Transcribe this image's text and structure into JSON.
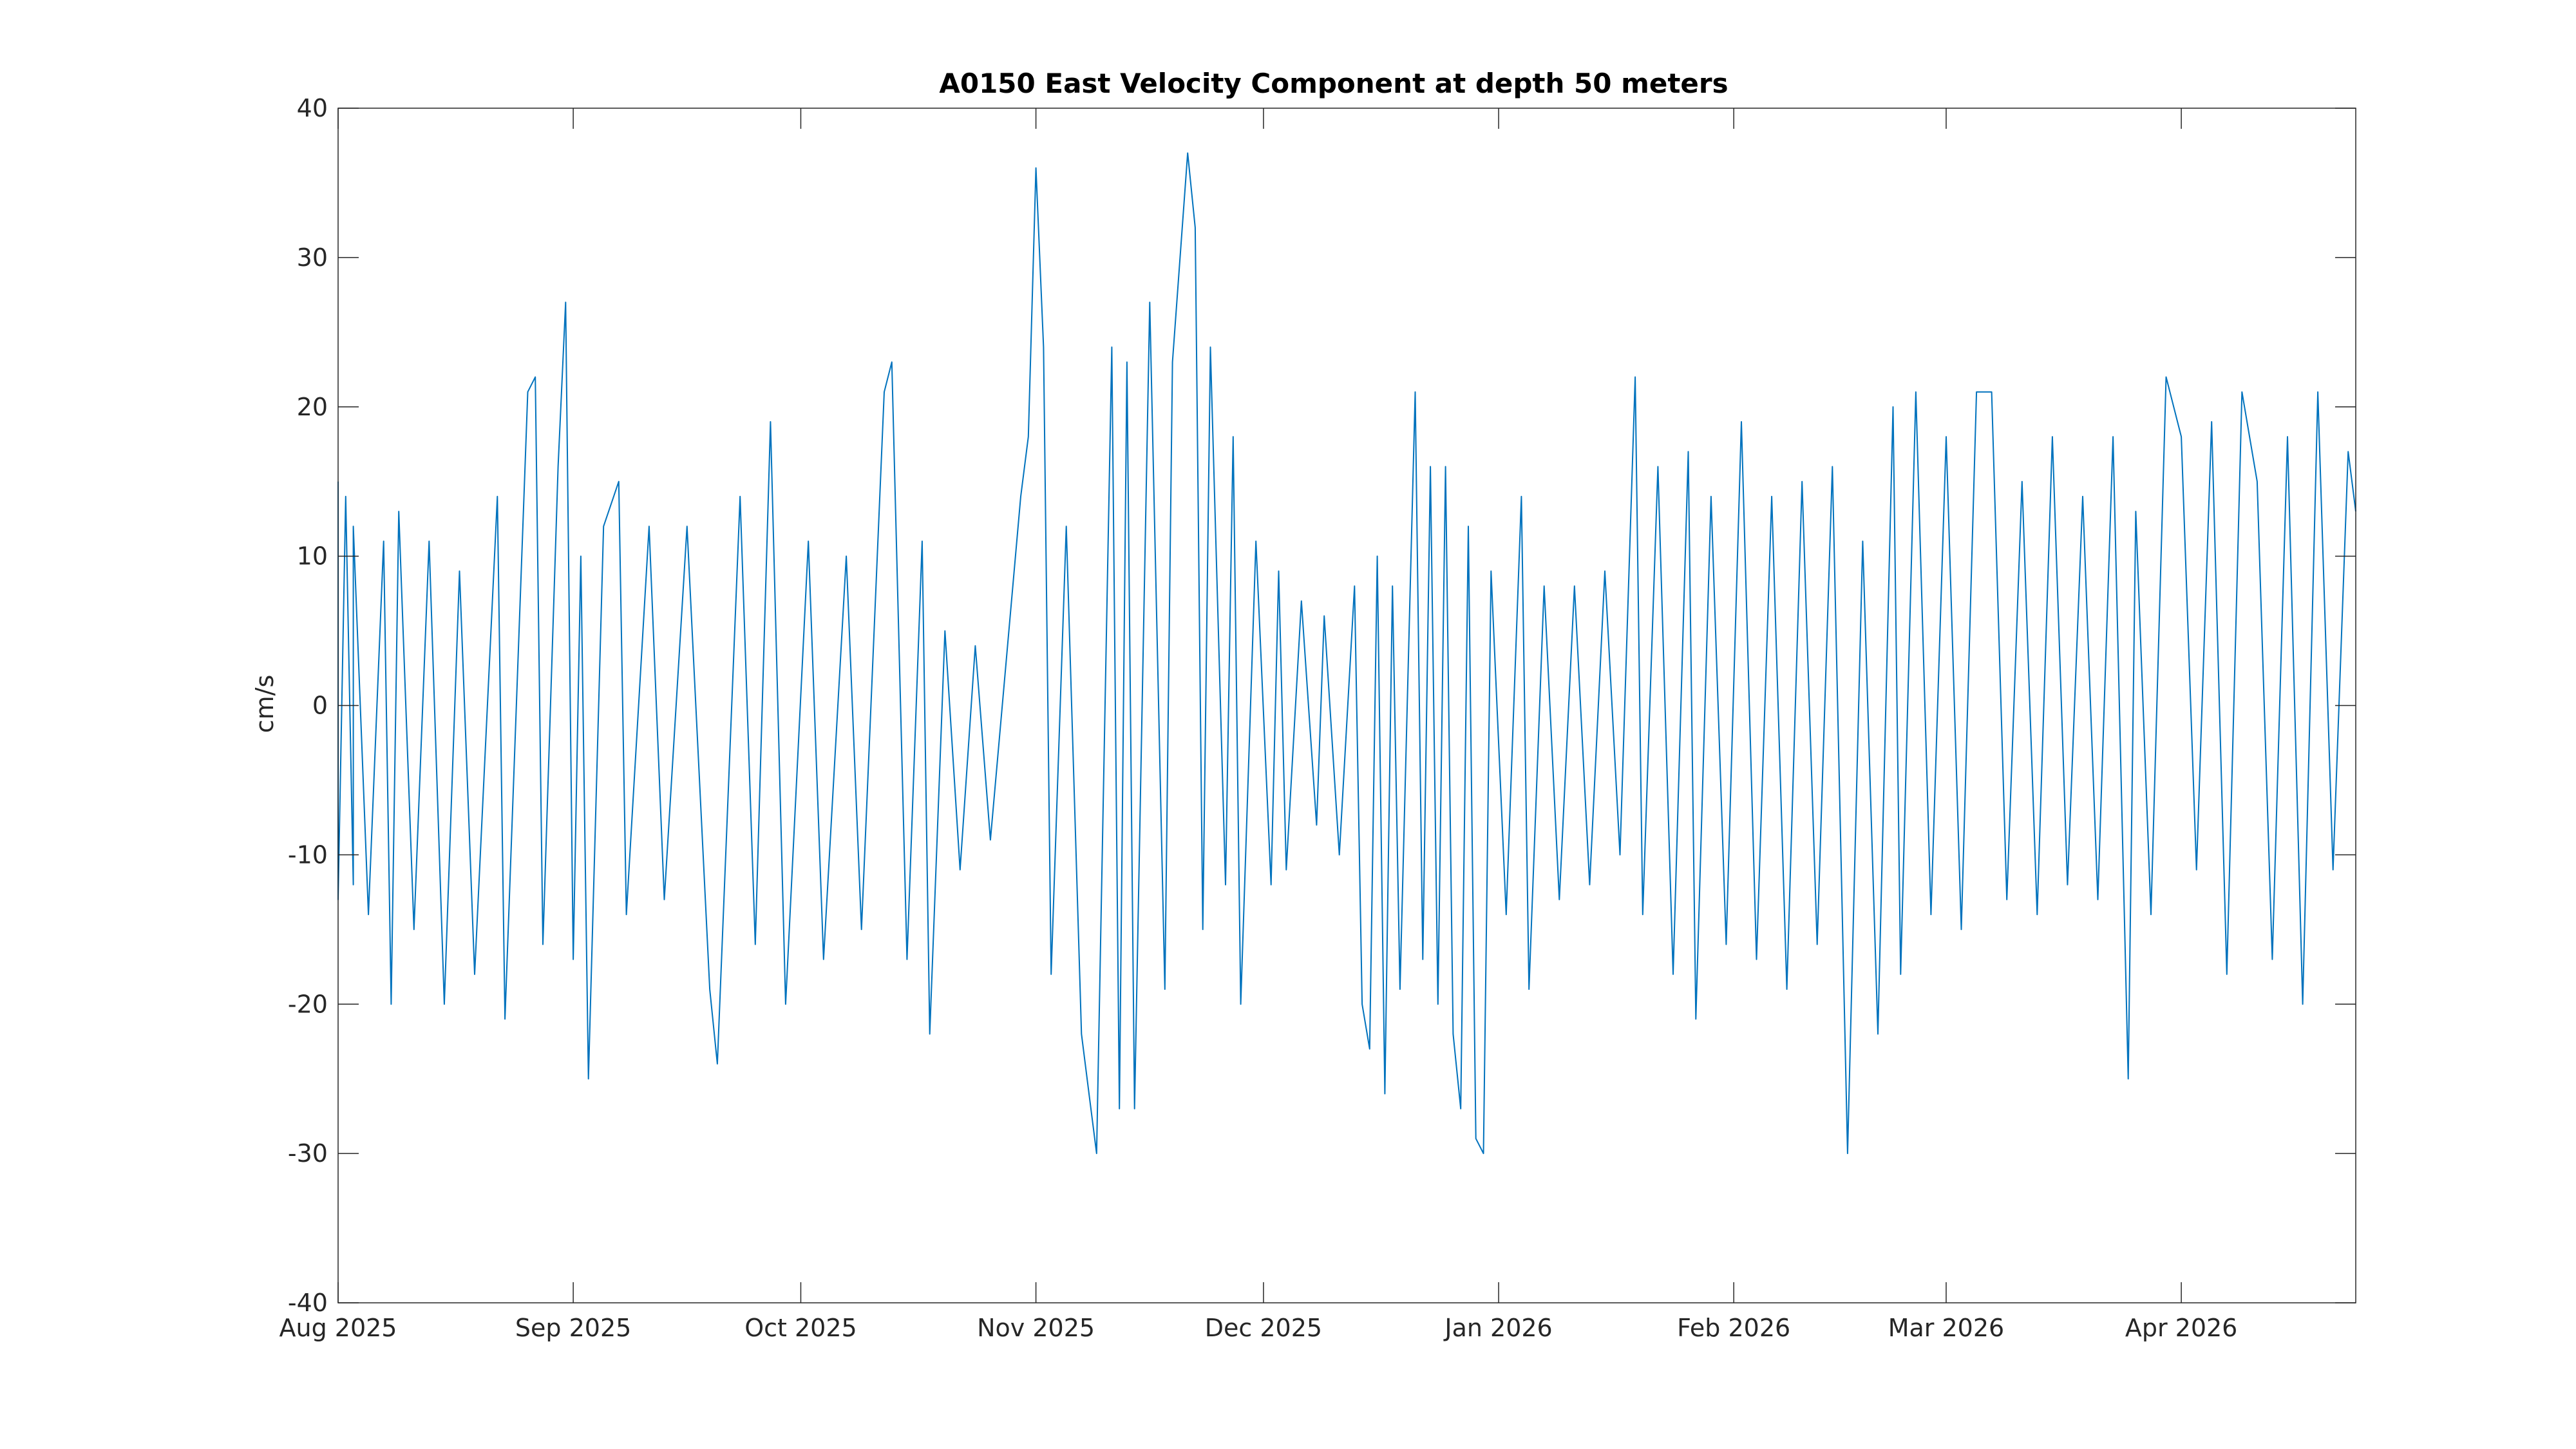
{
  "chart_data": {
    "type": "line",
    "title": "A0150 East Velocity Component at depth 50 meters",
    "xlabel": "",
    "ylabel": "cm/s",
    "x_range": [
      "2025-08-01",
      "2026-04-24"
    ],
    "ylim": [
      -40,
      40
    ],
    "y_ticks": [
      -40,
      -30,
      -20,
      -10,
      0,
      10,
      20,
      30,
      40
    ],
    "x_ticks": [
      {
        "date": "2025-08-01",
        "label": "Aug 2025"
      },
      {
        "date": "2025-09-01",
        "label": "Sep 2025"
      },
      {
        "date": "2025-10-01",
        "label": "Oct 2025"
      },
      {
        "date": "2025-11-01",
        "label": "Nov 2025"
      },
      {
        "date": "2025-12-01",
        "label": "Dec 2025"
      },
      {
        "date": "2026-01-01",
        "label": "Jan 2026"
      },
      {
        "date": "2026-02-01",
        "label": "Feb 2026"
      },
      {
        "date": "2026-03-01",
        "label": "Mar 2026"
      },
      {
        "date": "2026-04-01",
        "label": "Apr 2026"
      }
    ],
    "grid": false,
    "series": [
      {
        "color": "#0072BD",
        "points": [
          [
            "2025-08-01",
            15
          ],
          [
            "2025-08-01",
            -13
          ],
          [
            "2025-08-02",
            14
          ],
          [
            "2025-08-03",
            -12
          ],
          [
            "2025-08-03",
            12
          ],
          [
            "2025-08-05",
            -14
          ],
          [
            "2025-08-07",
            11
          ],
          [
            "2025-08-08",
            -20
          ],
          [
            "2025-08-09",
            13
          ],
          [
            "2025-08-11",
            -15
          ],
          [
            "2025-08-13",
            11
          ],
          [
            "2025-08-15",
            -20
          ],
          [
            "2025-08-17",
            9
          ],
          [
            "2025-08-19",
            -18
          ],
          [
            "2025-08-22",
            14
          ],
          [
            "2025-08-23",
            -21
          ],
          [
            "2025-08-26",
            21
          ],
          [
            "2025-08-27",
            22
          ],
          [
            "2025-08-28",
            -16
          ],
          [
            "2025-08-30",
            16
          ],
          [
            "2025-08-31",
            27
          ],
          [
            "2025-09-01",
            -17
          ],
          [
            "2025-09-02",
            10
          ],
          [
            "2025-09-03",
            -25
          ],
          [
            "2025-09-05",
            12
          ],
          [
            "2025-09-07",
            15
          ],
          [
            "2025-09-08",
            -14
          ],
          [
            "2025-09-11",
            12
          ],
          [
            "2025-09-13",
            -13
          ],
          [
            "2025-09-16",
            12
          ],
          [
            "2025-09-19",
            -19
          ],
          [
            "2025-09-20",
            -24
          ],
          [
            "2025-09-23",
            14
          ],
          [
            "2025-09-25",
            -16
          ],
          [
            "2025-09-27",
            19
          ],
          [
            "2025-09-29",
            -20
          ],
          [
            "2025-10-02",
            11
          ],
          [
            "2025-10-04",
            -17
          ],
          [
            "2025-10-07",
            10
          ],
          [
            "2025-10-09",
            -15
          ],
          [
            "2025-10-12",
            21
          ],
          [
            "2025-10-13",
            23
          ],
          [
            "2025-10-15",
            -17
          ],
          [
            "2025-10-17",
            11
          ],
          [
            "2025-10-18",
            -22
          ],
          [
            "2025-10-20",
            5
          ],
          [
            "2025-10-22",
            -11
          ],
          [
            "2025-10-24",
            4
          ],
          [
            "2025-10-26",
            -9
          ],
          [
            "2025-10-30",
            14
          ],
          [
            "2025-10-31",
            18
          ],
          [
            "2025-11-01",
            36
          ],
          [
            "2025-11-02",
            24
          ],
          [
            "2025-11-03",
            -18
          ],
          [
            "2025-11-05",
            12
          ],
          [
            "2025-11-07",
            -22
          ],
          [
            "2025-11-08",
            -26
          ],
          [
            "2025-11-09",
            -30
          ],
          [
            "2025-11-11",
            24
          ],
          [
            "2025-11-12",
            -27
          ],
          [
            "2025-11-13",
            23
          ],
          [
            "2025-11-14",
            -27
          ],
          [
            "2025-11-16",
            27
          ],
          [
            "2025-11-18",
            -19
          ],
          [
            "2025-11-19",
            23
          ],
          [
            "2025-11-21",
            37
          ],
          [
            "2025-11-22",
            32
          ],
          [
            "2025-11-23",
            -15
          ],
          [
            "2025-11-24",
            24
          ],
          [
            "2025-11-26",
            -12
          ],
          [
            "2025-11-27",
            18
          ],
          [
            "2025-11-28",
            -20
          ],
          [
            "2025-11-30",
            11
          ],
          [
            "2025-12-02",
            -12
          ],
          [
            "2025-12-03",
            9
          ],
          [
            "2025-12-04",
            -11
          ],
          [
            "2025-12-06",
            7
          ],
          [
            "2025-12-08",
            -8
          ],
          [
            "2025-12-09",
            6
          ],
          [
            "2025-12-11",
            -10
          ],
          [
            "2025-12-13",
            8
          ],
          [
            "2025-12-14",
            -20
          ],
          [
            "2025-12-15",
            -23
          ],
          [
            "2025-12-16",
            10
          ],
          [
            "2025-12-17",
            -26
          ],
          [
            "2025-12-18",
            8
          ],
          [
            "2025-12-19",
            -19
          ],
          [
            "2025-12-21",
            21
          ],
          [
            "2025-12-22",
            -17
          ],
          [
            "2025-12-23",
            16
          ],
          [
            "2025-12-24",
            -20
          ],
          [
            "2025-12-25",
            16
          ],
          [
            "2025-12-26",
            -22
          ],
          [
            "2025-12-27",
            -27
          ],
          [
            "2025-12-28",
            12
          ],
          [
            "2025-12-29",
            -29
          ],
          [
            "2025-12-30",
            -30
          ],
          [
            "2025-12-31",
            9
          ],
          [
            "2026-01-02",
            -14
          ],
          [
            "2026-01-04",
            14
          ],
          [
            "2026-01-05",
            -19
          ],
          [
            "2026-01-07",
            8
          ],
          [
            "2026-01-09",
            -13
          ],
          [
            "2026-01-11",
            8
          ],
          [
            "2026-01-13",
            -12
          ],
          [
            "2026-01-15",
            9
          ],
          [
            "2026-01-17",
            -10
          ],
          [
            "2026-01-19",
            22
          ],
          [
            "2026-01-20",
            -14
          ],
          [
            "2026-01-22",
            16
          ],
          [
            "2026-01-24",
            -18
          ],
          [
            "2026-01-26",
            17
          ],
          [
            "2026-01-27",
            -21
          ],
          [
            "2026-01-29",
            14
          ],
          [
            "2026-01-31",
            -16
          ],
          [
            "2026-02-02",
            19
          ],
          [
            "2026-02-04",
            -17
          ],
          [
            "2026-02-06",
            14
          ],
          [
            "2026-02-08",
            -19
          ],
          [
            "2026-02-10",
            15
          ],
          [
            "2026-02-12",
            -16
          ],
          [
            "2026-02-14",
            16
          ],
          [
            "2026-02-16",
            -30
          ],
          [
            "2026-02-18",
            11
          ],
          [
            "2026-02-20",
            -22
          ],
          [
            "2026-02-22",
            20
          ],
          [
            "2026-02-23",
            -18
          ],
          [
            "2026-02-25",
            21
          ],
          [
            "2026-02-27",
            -14
          ],
          [
            "2026-03-01",
            18
          ],
          [
            "2026-03-03",
            -15
          ],
          [
            "2026-03-05",
            21
          ],
          [
            "2026-03-07",
            21
          ],
          [
            "2026-03-09",
            -13
          ],
          [
            "2026-03-11",
            15
          ],
          [
            "2026-03-13",
            -14
          ],
          [
            "2026-03-15",
            18
          ],
          [
            "2026-03-17",
            -12
          ],
          [
            "2026-03-19",
            14
          ],
          [
            "2026-03-21",
            -13
          ],
          [
            "2026-03-23",
            18
          ],
          [
            "2026-03-25",
            -25
          ],
          [
            "2026-03-26",
            13
          ],
          [
            "2026-03-28",
            -14
          ],
          [
            "2026-03-30",
            22
          ],
          [
            "2026-04-01",
            18
          ],
          [
            "2026-04-03",
            -11
          ],
          [
            "2026-04-05",
            19
          ],
          [
            "2026-04-07",
            -18
          ],
          [
            "2026-04-09",
            21
          ],
          [
            "2026-04-11",
            15
          ],
          [
            "2026-04-13",
            -17
          ],
          [
            "2026-04-15",
            18
          ],
          [
            "2026-04-17",
            -20
          ],
          [
            "2026-04-19",
            21
          ],
          [
            "2026-04-21",
            -11
          ],
          [
            "2026-04-23",
            17
          ],
          [
            "2026-04-24",
            13
          ]
        ]
      }
    ]
  }
}
